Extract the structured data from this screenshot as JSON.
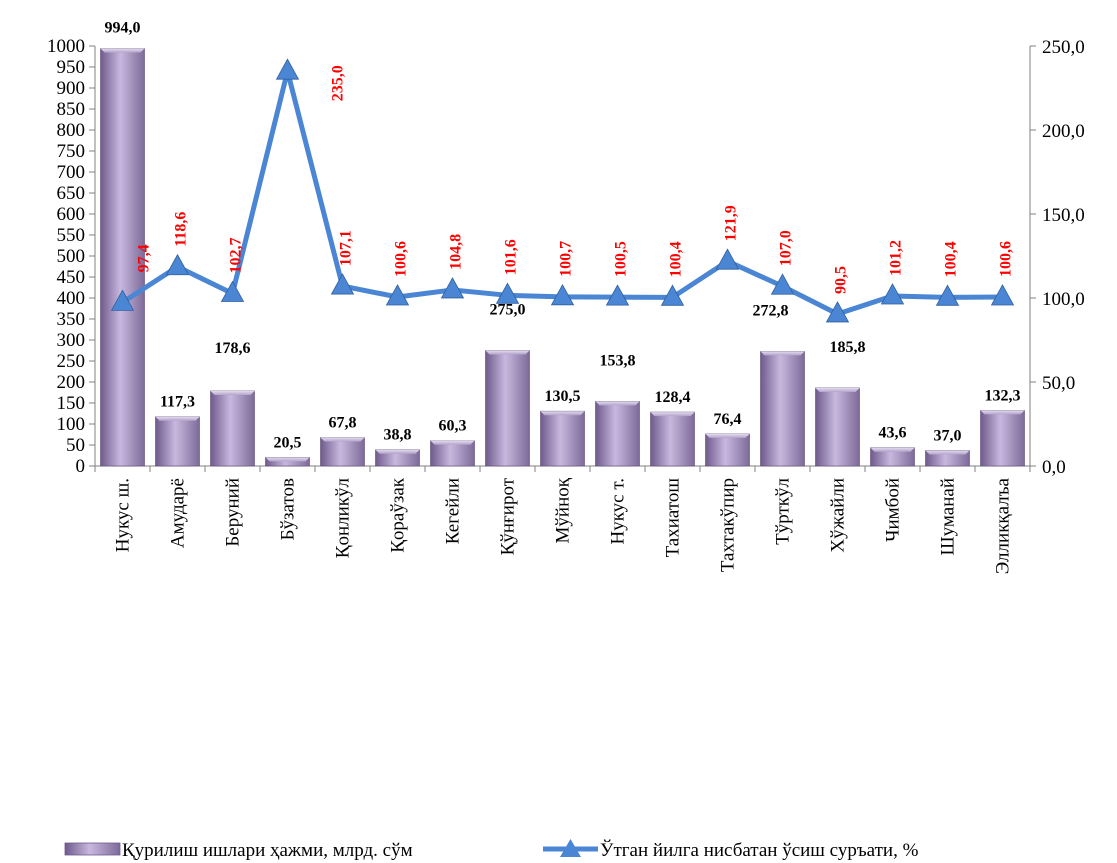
{
  "chart_data": {
    "type": "bar+line",
    "categories": [
      "Нукус ш.",
      "Амударё",
      "Беруний",
      "Бўзатов",
      "Қонликўл",
      "Қораўзак",
      "Кегейли",
      "Қўнғирот",
      "Мўйноқ",
      "Нукус т.",
      "Тахиатош",
      "Тахтакўпир",
      "Тўрткўл",
      "Хўжайли",
      "Чимбой",
      "Шуманай",
      "Элликқалъа"
    ],
    "series": [
      {
        "name": "Қурилиш ишлари ҳажми, млрд. сўм",
        "type": "bar",
        "axis": "left",
        "values": [
          994.0,
          117.3,
          178.6,
          20.5,
          67.8,
          38.8,
          60.3,
          275.0,
          130.5,
          153.8,
          128.4,
          76.4,
          272.8,
          185.8,
          43.6,
          37.0,
          132.3
        ],
        "labels": [
          "994,0",
          "117,3",
          "178,6",
          "20,5",
          "67,8",
          "38,8",
          "60,3",
          "275,0",
          "130,5",
          "153,8",
          "128,4",
          "76,4",
          "272,8",
          "185,8",
          "43,6",
          "37,0",
          "132,3"
        ],
        "color": "#a996c4"
      },
      {
        "name": "Ўтган йилга нисбатан ўсиш суръати, %",
        "type": "line",
        "axis": "right",
        "values": [
          97.4,
          118.6,
          102.7,
          235.0,
          107.1,
          100.6,
          104.8,
          101.6,
          100.7,
          100.5,
          100.4,
          121.9,
          107.0,
          90.5,
          101.2,
          100.4,
          100.6
        ],
        "labels": [
          "97,4",
          "118,6",
          "102,7",
          "235,0",
          "107,1",
          "100,6",
          "104,8",
          "101,6",
          "100,7",
          "100,5",
          "100,4",
          "121,9",
          "107,0",
          "90,5",
          "101,2",
          "100,4",
          "100,6"
        ],
        "color": "#4a86d4",
        "label_color": "#ff0000"
      }
    ],
    "y_left": {
      "range": [
        0,
        1000
      ],
      "ticks": [
        "0",
        "50",
        "100",
        "150",
        "200",
        "250",
        "300",
        "350",
        "400",
        "450",
        "500",
        "550",
        "600",
        "650",
        "700",
        "750",
        "800",
        "850",
        "900",
        "950",
        "1000"
      ]
    },
    "y_right": {
      "range": [
        0,
        250
      ],
      "ticks": [
        "0,0",
        "50,0",
        "100,0",
        "150,0",
        "200,0",
        "250,0"
      ]
    },
    "grid": false,
    "legend_position": "bottom"
  }
}
